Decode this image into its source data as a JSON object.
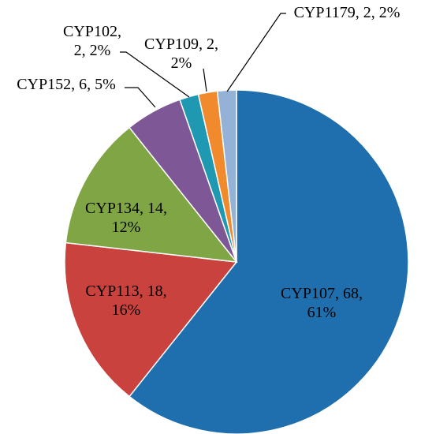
{
  "chart_data": {
    "type": "pie",
    "title": "",
    "legend": "none",
    "start_angle_deg": 0,
    "direction": "clockwise",
    "slices": [
      {
        "name": "CYP107",
        "value": 68,
        "percent": "61%",
        "label": "CYP107, 68, 61%",
        "color": "#1f6fae"
      },
      {
        "name": "CYP113",
        "value": 18,
        "percent": "16%",
        "label": "CYP113, 18, 16%",
        "color": "#c9423e"
      },
      {
        "name": "CYP134",
        "value": 14,
        "percent": "12%",
        "label": "CYP134, 14, 12%",
        "color": "#7fa544"
      },
      {
        "name": "CYP152",
        "value": 6,
        "percent": "5%",
        "label": "CYP152, 6, 5%",
        "color": "#7e5796"
      },
      {
        "name": "CYP102",
        "value": 2,
        "percent": "2%",
        "label": "CYP102, 2, 2%",
        "color": "#1f98b2"
      },
      {
        "name": "CYP109",
        "value": 2,
        "percent": "2%",
        "label": "CYP109, 2, 2%",
        "color": "#f08a2c"
      },
      {
        "name": "CYP1179",
        "value": 2,
        "percent": "2%",
        "label": "CYP1179, 2, 2%",
        "color": "#94b2d6"
      }
    ]
  }
}
